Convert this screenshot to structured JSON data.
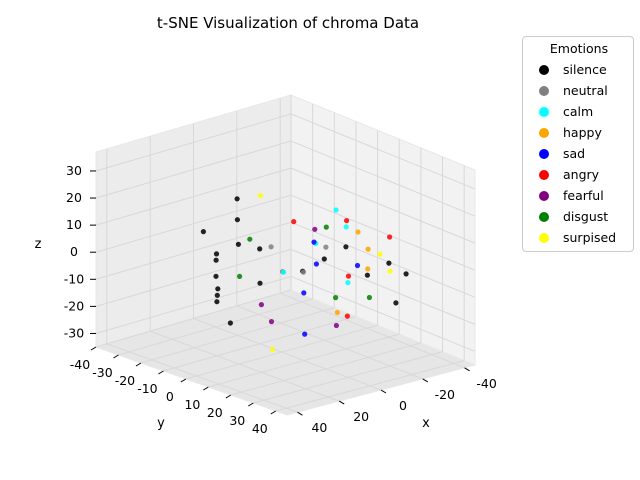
{
  "chart_data": {
    "type": "scatter",
    "projection": "3d",
    "title": "t-SNE Visualization of chroma Data",
    "xlabel": "x",
    "ylabel": "y",
    "zlabel": "z",
    "x_ticks": [
      -40,
      -20,
      0,
      20,
      40
    ],
    "y_ticks": [
      -40,
      -30,
      -20,
      -10,
      0,
      10,
      20,
      30,
      40
    ],
    "z_ticks": [
      -30,
      -20,
      -10,
      0,
      10,
      20,
      30
    ],
    "xlim": [
      -45,
      45
    ],
    "ylim": [
      -40,
      45
    ],
    "zlim": [
      -35,
      37
    ],
    "grid": true,
    "legend": {
      "title": "Emotions",
      "placement": "outside-top-right",
      "entries": [
        {
          "name": "silence",
          "color": "#000000"
        },
        {
          "name": "neutral",
          "color": "#808080"
        },
        {
          "name": "calm",
          "color": "#00ffff"
        },
        {
          "name": "happy",
          "color": "#ffa500"
        },
        {
          "name": "sad",
          "color": "#0000ff"
        },
        {
          "name": "angry",
          "color": "#ff0000"
        },
        {
          "name": "fearful",
          "color": "#800080"
        },
        {
          "name": "disgust",
          "color": "#008000"
        },
        {
          "name": "surpised",
          "color": "#ffff00"
        }
      ]
    },
    "series": [
      {
        "name": "silence",
        "points": [
          [
            0,
            -10,
            0
          ],
          [
            10,
            -20,
            -5
          ],
          [
            5,
            -5,
            -10
          ],
          [
            15,
            -15,
            0
          ],
          [
            -5,
            -25,
            5
          ],
          [
            20,
            -10,
            -15
          ],
          [
            25,
            -5,
            -10
          ],
          [
            30,
            0,
            -5
          ],
          [
            -10,
            -30,
            10
          ],
          [
            8,
            -22,
            -12
          ],
          [
            12,
            -8,
            5
          ],
          [
            18,
            -18,
            8
          ],
          [
            22,
            -2,
            -20
          ],
          [
            -15,
            -5,
            -10
          ],
          [
            -20,
            0,
            -5
          ],
          [
            -25,
            5,
            0
          ],
          [
            -30,
            10,
            -10
          ],
          [
            -35,
            15,
            -5
          ],
          [
            -38,
            20,
            -8
          ],
          [
            -28,
            25,
            -15
          ]
        ]
      },
      {
        "name": "neutral",
        "points": [
          [
            5,
            0,
            5
          ],
          [
            10,
            10,
            0
          ],
          [
            -5,
            5,
            -5
          ],
          [
            0,
            20,
            10
          ]
        ]
      },
      {
        "name": "calm",
        "points": [
          [
            10,
            25,
            15
          ],
          [
            -10,
            15,
            20
          ],
          [
            20,
            20,
            5
          ],
          [
            -20,
            10,
            10
          ],
          [
            0,
            30,
            0
          ]
        ]
      },
      {
        "name": "happy",
        "points": [
          [
            -10,
            25,
            15
          ],
          [
            -20,
            20,
            5
          ],
          [
            5,
            30,
            -10
          ],
          [
            -25,
            15,
            -5
          ]
        ]
      },
      {
        "name": "sad",
        "points": [
          [
            0,
            10,
            -10
          ],
          [
            10,
            20,
            -20
          ],
          [
            -10,
            5,
            5
          ],
          [
            15,
            30,
            10
          ],
          [
            -15,
            20,
            0
          ]
        ]
      },
      {
        "name": "angry",
        "points": [
          [
            -15,
            15,
            15
          ],
          [
            -5,
            25,
            -15
          ],
          [
            5,
            35,
            5
          ],
          [
            -25,
            25,
            10
          ],
          [
            10,
            15,
            20
          ]
        ]
      },
      {
        "name": "fearful",
        "points": [
          [
            10,
            5,
            -20
          ],
          [
            -5,
            20,
            -20
          ],
          [
            0,
            15,
            15
          ],
          [
            20,
            10,
            -10
          ]
        ]
      },
      {
        "name": "disgust",
        "points": [
          [
            15,
            0,
            10
          ],
          [
            -15,
            10,
            -15
          ],
          [
            5,
            25,
            20
          ],
          [
            25,
            5,
            0
          ],
          [
            -5,
            35,
            -5
          ]
        ]
      },
      {
        "name": "surpised",
        "points": [
          [
            -20,
            30,
            0
          ],
          [
            10,
            0,
            25
          ],
          [
            20,
            15,
            -25
          ],
          [
            -10,
            35,
            10
          ]
        ]
      }
    ]
  }
}
